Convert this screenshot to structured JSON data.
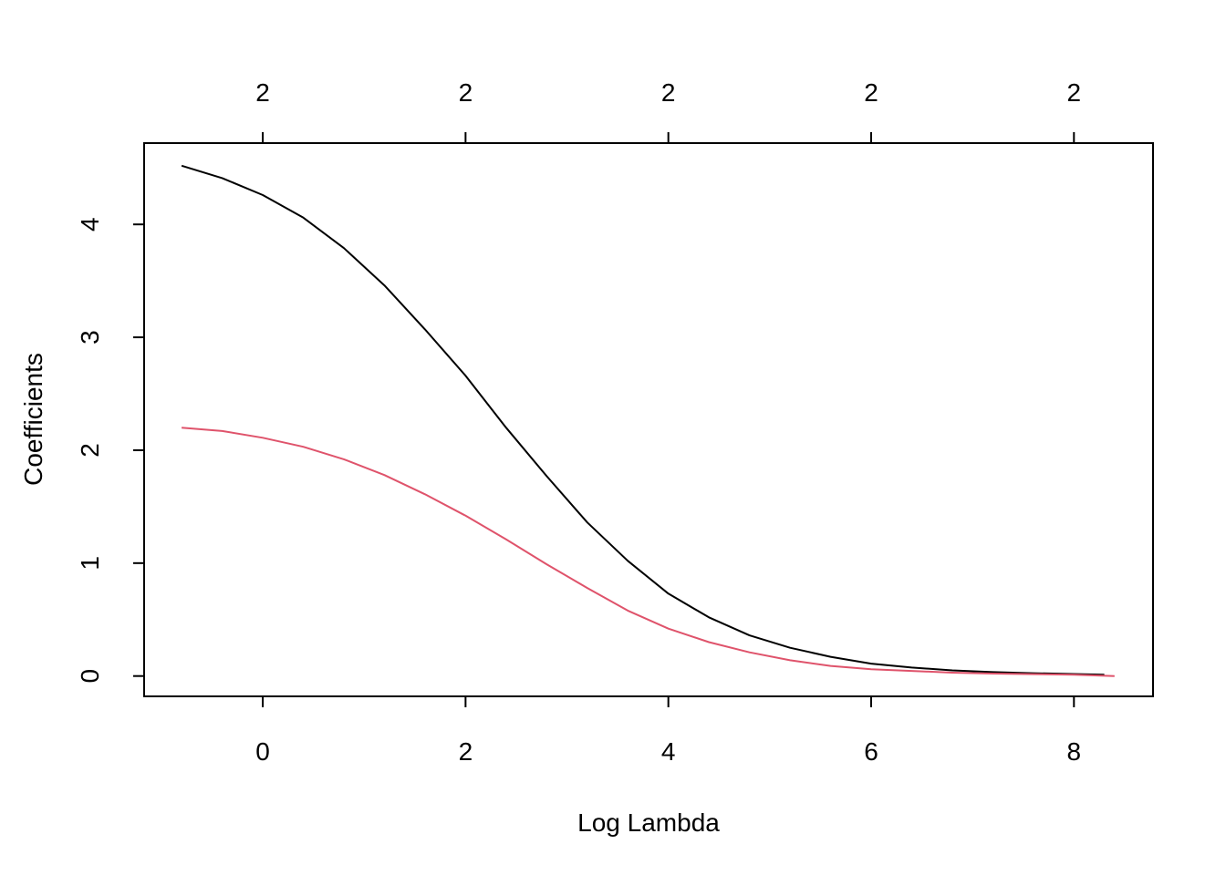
{
  "chart_data": {
    "type": "line",
    "title": "",
    "xlabel": "Log Lambda",
    "ylabel": "Coefficients",
    "xlim": [
      -1.17,
      8.78
    ],
    "ylim": [
      -0.18,
      4.72
    ],
    "x_ticks": [
      0,
      2,
      4,
      6,
      8
    ],
    "y_ticks": [
      0,
      1,
      2,
      3,
      4
    ],
    "top_axis": {
      "ticks": [
        0,
        2,
        4,
        6,
        8
      ],
      "labels": [
        "2",
        "2",
        "2",
        "2",
        "2"
      ]
    },
    "grid": false,
    "legend": "none",
    "series": [
      {
        "color": "#000000",
        "x": [
          -0.8,
          -0.4,
          0,
          0.4,
          0.8,
          1.2,
          1.6,
          2.0,
          2.4,
          2.8,
          3.2,
          3.6,
          4.0,
          4.4,
          4.8,
          5.2,
          5.6,
          6.0,
          6.4,
          6.8,
          7.2,
          7.6,
          8.0,
          8.3
        ],
        "y": [
          4.52,
          4.41,
          4.26,
          4.06,
          3.79,
          3.46,
          3.07,
          2.66,
          2.2,
          1.77,
          1.36,
          1.02,
          0.73,
          0.52,
          0.36,
          0.25,
          0.17,
          0.11,
          0.075,
          0.05,
          0.035,
          0.025,
          0.018,
          0.012
        ]
      },
      {
        "color": "#DF536B",
        "x": [
          -0.8,
          -0.4,
          0,
          0.4,
          0.8,
          1.2,
          1.6,
          2.0,
          2.4,
          2.8,
          3.2,
          3.6,
          4.0,
          4.4,
          4.8,
          5.2,
          5.6,
          6.0,
          6.4,
          6.8,
          7.2,
          7.6,
          8.0,
          8.4
        ],
        "y": [
          2.2,
          2.17,
          2.11,
          2.03,
          1.92,
          1.78,
          1.61,
          1.42,
          1.21,
          0.99,
          0.78,
          0.58,
          0.42,
          0.3,
          0.21,
          0.14,
          0.09,
          0.06,
          0.045,
          0.03,
          0.022,
          0.017,
          0.012,
          0.0
        ]
      }
    ]
  }
}
